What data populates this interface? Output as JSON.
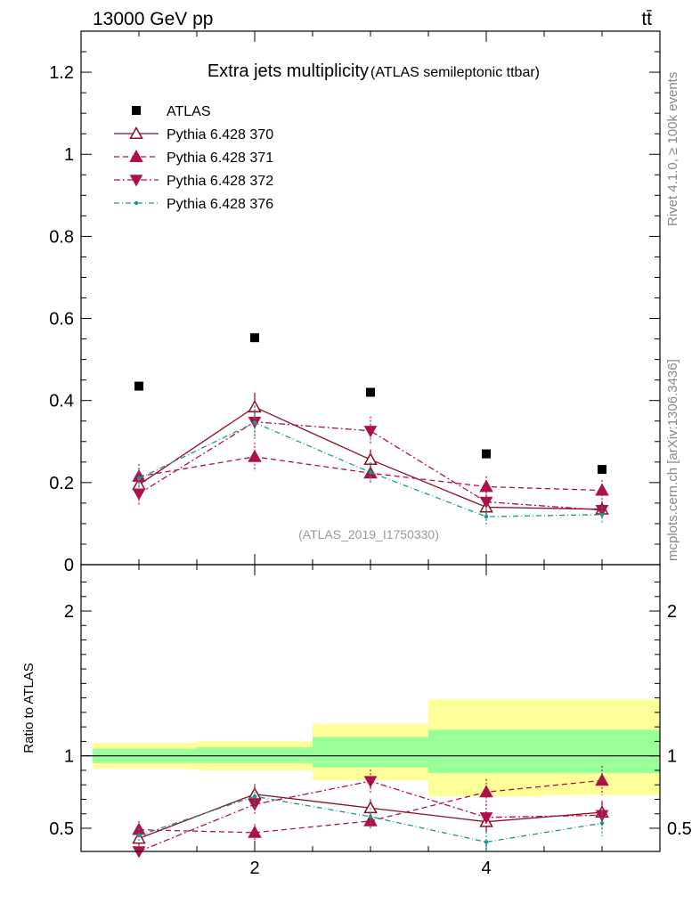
{
  "header": {
    "energy_label": "13000 GeV pp",
    "process_label": "tt̄"
  },
  "side": {
    "rivet_label": "Rivet 4.1.0, ≥ 100k events",
    "site_label": "mcplots.cern.ch [arXiv:1306.3436]"
  },
  "colors": {
    "atlas": "#000000",
    "py370": "#8b0d1f",
    "py371": "#b0104a",
    "py372": "#b0104a",
    "py376": "#17998a",
    "band_outer": "#ffff99",
    "band_inner": "#99ff99"
  },
  "chart_data": [
    {
      "type": "scatter",
      "title": "Extra jets multiplicity",
      "subtitle": "(ATLAS semileptonic ttbar)",
      "analysis_tag": "(ATLAS_2019_I1750330)",
      "xlabel": "",
      "ylabel": "",
      "xlim": [
        0.5,
        5.5
      ],
      "ylim": [
        0,
        1.3
      ],
      "yticks": [
        0,
        0.2,
        0.4,
        0.6,
        0.8,
        1,
        1.2
      ],
      "ytick_labels": [
        "0",
        "0.2",
        "0.4",
        "0.6",
        "0.8",
        "1",
        "1.2"
      ],
      "x": [
        1,
        2,
        3,
        4,
        5
      ],
      "legend_position": "top-left",
      "series": [
        {
          "name": "ATLAS",
          "key": "atlas",
          "values": [
            0.435,
            0.553,
            0.42,
            0.27,
            0.232
          ]
        },
        {
          "name": "Pythia 6.428 370",
          "key": "py370",
          "values": [
            0.195,
            0.384,
            0.256,
            0.14,
            0.135
          ],
          "errors": [
            0.025,
            0.035,
            0.025,
            0.02,
            0.02
          ]
        },
        {
          "name": "Pythia 6.428 371",
          "key": "py371",
          "values": [
            0.215,
            0.263,
            0.223,
            0.19,
            0.181
          ],
          "errors": [
            0.03,
            0.035,
            0.025,
            0.025,
            0.025
          ]
        },
        {
          "name": "Pythia 6.428 372",
          "key": "py372",
          "values": [
            0.173,
            0.348,
            0.326,
            0.153,
            0.133
          ],
          "errors": [
            0.03,
            0.04,
            0.035,
            0.025,
            0.02
          ]
        },
        {
          "name": "Pythia 6.428 376",
          "key": "py376",
          "values": [
            0.21,
            0.346,
            0.225,
            0.117,
            0.122
          ],
          "errors": [
            0.025,
            0.04,
            0.025,
            0.02,
            0.02
          ]
        }
      ]
    },
    {
      "type": "scatter",
      "title": "",
      "xlabel": "",
      "ylabel": "Ratio to ATLAS",
      "xlim": [
        0.5,
        5.5
      ],
      "ylim": [
        0.34,
        2.32
      ],
      "yticks": [
        0.5,
        1,
        2
      ],
      "ytick_labels": [
        "0.5",
        "1",
        "2"
      ],
      "xticks": [
        2,
        4
      ],
      "xtick_labels": [
        "2",
        "4"
      ],
      "x": [
        1,
        2,
        3,
        4,
        5
      ],
      "bands": [
        {
          "x_range": [
            0.6,
            1.5
          ],
          "inner": [
            0.95,
            1.05
          ],
          "outer": [
            0.91,
            1.09
          ]
        },
        {
          "x_range": [
            1.5,
            2.5
          ],
          "inner": [
            0.95,
            1.06
          ],
          "outer": [
            0.9,
            1.1
          ]
        },
        {
          "x_range": [
            2.5,
            3.5
          ],
          "inner": [
            0.92,
            1.13
          ],
          "outer": [
            0.83,
            1.22
          ]
        },
        {
          "x_range": [
            3.5,
            4.5
          ],
          "inner": [
            0.88,
            1.18
          ],
          "outer": [
            0.72,
            1.39
          ]
        },
        {
          "x_range": [
            4.5,
            5.5
          ],
          "inner": [
            0.88,
            1.18
          ],
          "outer": [
            0.73,
            1.39
          ]
        }
      ],
      "series": [
        {
          "name": "Pythia 6.428 370",
          "key": "py370",
          "values": [
            0.43,
            0.735,
            0.64,
            0.545,
            0.61
          ],
          "errors": [
            0.05,
            0.07,
            0.06,
            0.07,
            0.08
          ]
        },
        {
          "name": "Pythia 6.428 371",
          "key": "py371",
          "values": [
            0.49,
            0.47,
            0.55,
            0.75,
            0.83
          ],
          "errors": [
            0.06,
            0.06,
            0.06,
            0.09,
            0.1
          ]
        },
        {
          "name": "Pythia 6.428 372",
          "key": "py372",
          "values": [
            0.34,
            0.665,
            0.825,
            0.575,
            0.59
          ],
          "errors": [
            0.06,
            0.07,
            0.08,
            0.09,
            0.09
          ]
        },
        {
          "name": "Pythia 6.428 376",
          "key": "py376",
          "values": [
            0.45,
            0.72,
            0.58,
            0.405,
            0.535
          ],
          "errors": [
            0.05,
            0.08,
            0.06,
            0.07,
            0.09
          ]
        }
      ]
    }
  ]
}
